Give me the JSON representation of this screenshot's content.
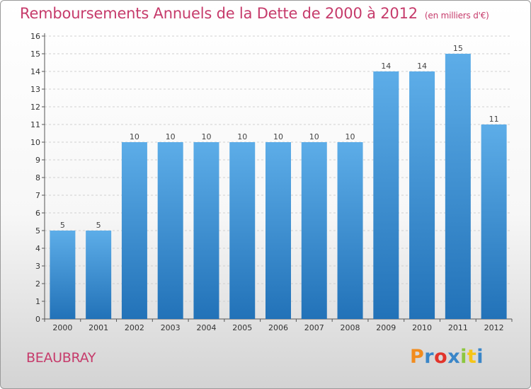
{
  "header": {
    "title": "Remboursements Annuels de la Dette de 2000 à 2012",
    "unit": "(en milliers d'€)"
  },
  "footer": {
    "place": "BEAUBRAY",
    "logo": "Proxiti",
    "logo_colors": [
      "#f28c1e",
      "#3a86c8",
      "#e2342b",
      "#3a86c8",
      "#8cc63f",
      "#f5c518",
      "#3a86c8"
    ]
  },
  "colors": {
    "accent": "#c63b6b",
    "bar_top": "#5dade8",
    "bar_bottom": "#2272b8",
    "grid": "#d0d0d0"
  },
  "chart_data": {
    "type": "bar",
    "title": "Remboursements Annuels de la Dette de 2000 à 2012",
    "subtitle": "(en milliers d'€)",
    "xlabel": "",
    "ylabel": "",
    "categories": [
      "2000",
      "2001",
      "2002",
      "2003",
      "2004",
      "2005",
      "2006",
      "2007",
      "2008",
      "2009",
      "2010",
      "2011",
      "2012"
    ],
    "values": [
      5,
      5,
      10,
      10,
      10,
      10,
      10,
      10,
      10,
      14,
      14,
      15,
      11
    ],
    "ylim": [
      0,
      16
    ],
    "yticks": [
      "0",
      "1",
      "2",
      "3",
      "4",
      "5",
      "6",
      "7",
      "8",
      "9",
      "10",
      "11",
      "12",
      "13",
      "14",
      "15",
      "16"
    ],
    "grid": true,
    "legend": "none"
  }
}
